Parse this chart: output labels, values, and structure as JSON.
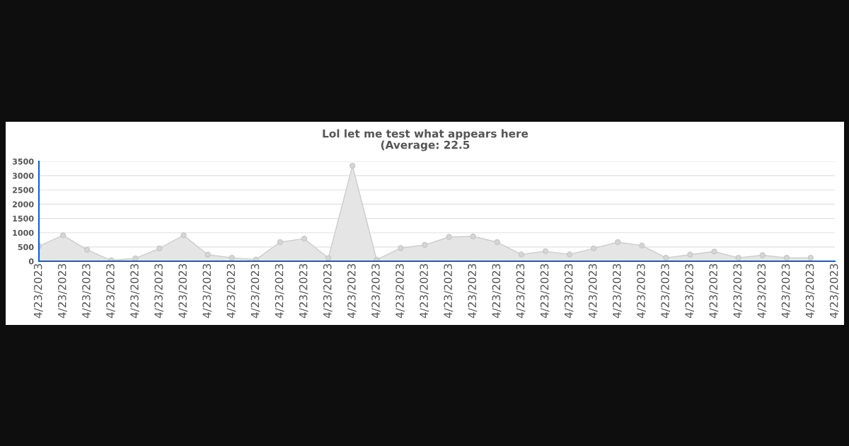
{
  "chart_data": {
    "type": "area",
    "title": "Lol let me test what appears here\n(Average: 22.5",
    "categories": [
      "4/23/2023",
      "4/23/2023",
      "4/23/2023",
      "4/23/2023",
      "4/23/2023",
      "4/23/2023",
      "4/23/2023",
      "4/23/2023",
      "4/23/2023",
      "4/23/2023",
      "4/23/2023",
      "4/23/2023",
      "4/23/2023",
      "4/23/2023",
      "4/23/2023",
      "4/23/2023",
      "4/23/2023",
      "4/23/2023",
      "4/23/2023",
      "4/23/2023",
      "4/23/2023",
      "4/23/2023",
      "4/23/2023",
      "4/23/2023",
      "4/23/2023",
      "4/23/2023",
      "4/23/2023",
      "4/23/2023",
      "4/23/2023",
      "4/23/2023",
      "4/23/2023",
      "4/23/2023",
      "4/23/2023",
      "4/23/2023"
    ],
    "series": [
      {
        "color": "#cccccc",
        "values": [
          530,
          910,
          400,
          30,
          100,
          450,
          910,
          230,
          120,
          60,
          670,
          790,
          110,
          3350,
          50,
          460,
          570,
          850,
          870,
          670,
          240,
          350,
          240,
          450,
          670,
          550,
          120,
          230,
          340,
          120,
          210,
          120,
          120,
          null
        ]
      }
    ],
    "ylim": [
      0,
      3500
    ],
    "yticks": [
      0,
      500,
      1000,
      1500,
      2000,
      2500,
      3000,
      3500
    ],
    "grid": "y",
    "marker": "circle",
    "legend": false
  }
}
